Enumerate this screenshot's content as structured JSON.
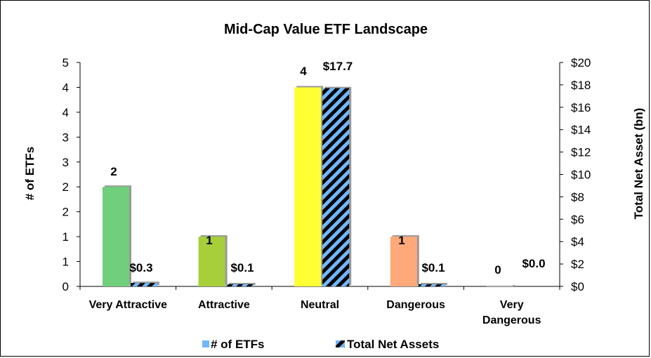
{
  "chart_data": {
    "type": "bar",
    "title": "Mid-Cap Value ETF Landscape",
    "categories": [
      "Very Attractive",
      "Attractive",
      "Neutral",
      "Dangerous",
      "Very Dangerous"
    ],
    "category_lines": [
      [
        "Very Attractive"
      ],
      [
        "Attractive"
      ],
      [
        "Neutral"
      ],
      [
        "Dangerous"
      ],
      [
        "Very",
        "Dangerous"
      ]
    ],
    "ylabel_left": "# of ETFs",
    "ylabel_right": "Total Net Asset (bn)",
    "yticks_left": [
      "0",
      "1",
      "1",
      "2",
      "2",
      "3",
      "3",
      "4",
      "4",
      "5"
    ],
    "yticks_right": [
      "$0",
      "$2",
      "$4",
      "$6",
      "$8",
      "$10",
      "$12",
      "$14",
      "$16",
      "$18",
      "$20"
    ],
    "ylim_left": [
      0,
      4.5
    ],
    "ylim_right": [
      0,
      20
    ],
    "series": [
      {
        "name": "# of ETFs",
        "axis": "left",
        "values": [
          2,
          1,
          4,
          1,
          0
        ],
        "labels": [
          "2",
          "1",
          "4",
          "1",
          "0"
        ],
        "colors": [
          "#6fcf7a",
          "#a6cf3a",
          "#ffff33",
          "#ffa97a",
          "#d9d9d9"
        ],
        "legend_color": "#6fb7ff"
      },
      {
        "name": "Total Net Assets",
        "axis": "right",
        "values": [
          0.3,
          0.1,
          17.7,
          0.1,
          0.0
        ],
        "labels": [
          "$0.3",
          "$0.1",
          "$17.7",
          "$0.1",
          "$0.0"
        ],
        "pattern": "diagonal stripes",
        "colors": [
          "#000000",
          "#6fb7ff"
        ]
      }
    ],
    "grid": false,
    "legend_position": "bottom"
  }
}
